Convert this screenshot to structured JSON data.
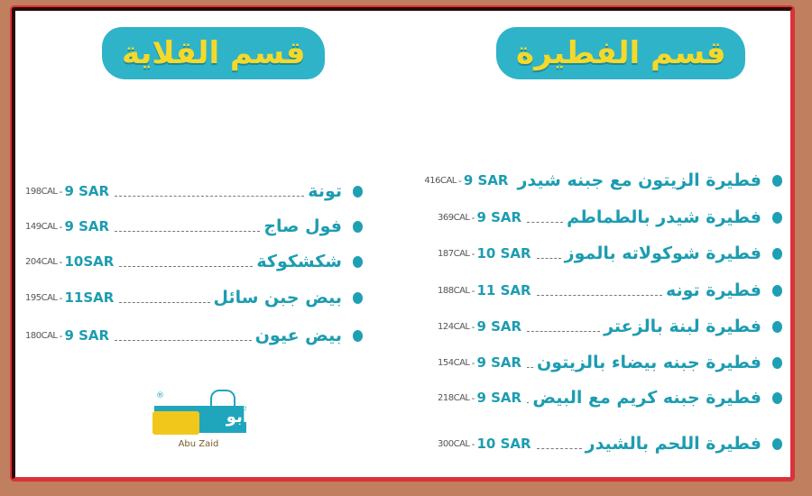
{
  "sections": {
    "frying": {
      "title": "قسم القلاية",
      "items": [
        {
          "name": "تونة",
          "price": "9 SAR",
          "calories": "198CAL"
        },
        {
          "name": "فول صاج",
          "price": "9 SAR",
          "calories": "149CAL"
        },
        {
          "name": "شكشكوكة",
          "price": "10SAR",
          "calories": "204CAL"
        },
        {
          "name": "بيض جبن سائل",
          "price": "11SAR",
          "calories": "195CAL"
        },
        {
          "name": "بيض عيون",
          "price": "9 SAR",
          "calories": "180CAL"
        }
      ]
    },
    "pastry": {
      "title": "قسم الفطيرة",
      "items": [
        {
          "name": "فطيرة الزيتون مع جبنه شيدر",
          "price": "9 SAR",
          "calories": "416CAL"
        },
        {
          "name": "فطيرة شيدر بالطماطم",
          "price": "9 SAR",
          "calories": "369CAL"
        },
        {
          "name": "فطيرة شوكولاته بالموز",
          "price": "10 SAR",
          "calories": "187CAL"
        },
        {
          "name": "فطيرة تونه",
          "price": "11 SAR",
          "calories": "188CAL"
        },
        {
          "name": "فطيرة لبنة بالزعتر",
          "price": "9 SAR",
          "calories": "124CAL"
        },
        {
          "name": "فطيرة جبنه بيضاء بالزيتون",
          "price": "9 SAR",
          "calories": "154CAL"
        },
        {
          "name": "فطيرة جبنه كريم مع البيض",
          "price": "9 SAR",
          "calories": "218CAL"
        },
        {
          "name": "فطيرة اللحم بالشيدر",
          "price": "10 SAR",
          "calories": "300CAL"
        }
      ]
    }
  },
  "separator": "-",
  "logo": {
    "arabic": "أبو زيد",
    "english": "Abu Zaid",
    "registered": "®"
  },
  "colors": {
    "accent": "#1d9cb1",
    "title_bg": "#2fb3c9",
    "title_text": "#f5d92a",
    "frame": "#d8333a",
    "background": "#c07f5e"
  }
}
